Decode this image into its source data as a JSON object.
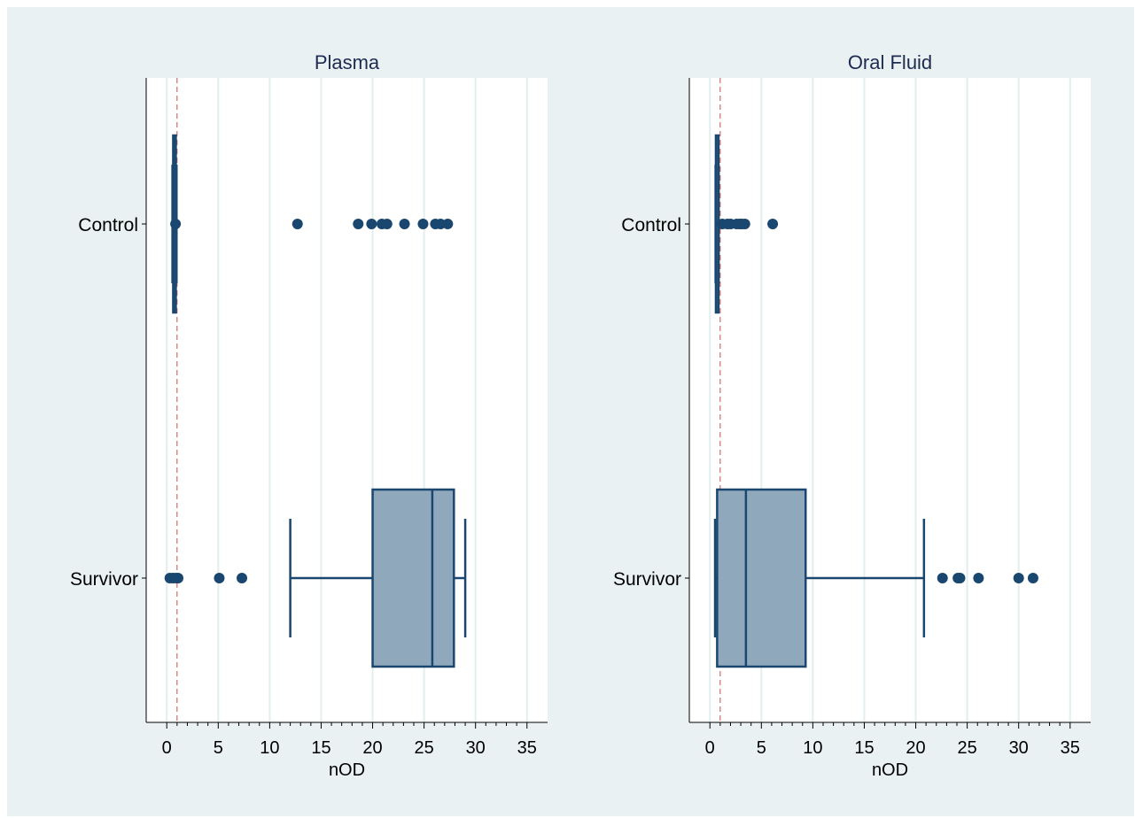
{
  "chart_data": [
    {
      "type": "boxplot",
      "title": "Plasma",
      "xlabel": "nOD",
      "ylabel": "",
      "xlim": [
        -2,
        37
      ],
      "xticks": [
        0,
        5,
        10,
        15,
        20,
        25,
        30,
        35
      ],
      "xtick_labels": [
        "0",
        "5",
        "10",
        "15",
        "20",
        "25",
        "30",
        "35"
      ],
      "grid": "vertical",
      "reference_line": {
        "x": 1.0,
        "style": "dashed",
        "color": "#c0504d"
      },
      "categories": [
        "Control",
        "Survivor"
      ],
      "boxes": [
        {
          "category": "Control",
          "whisker_low": 0.55,
          "q1": 0.62,
          "median": 0.68,
          "q3": 0.8,
          "whisker_high": 0.95,
          "outliers": [
            0.85,
            12.7,
            18.6,
            19.9,
            20.9,
            21.4,
            23.1,
            24.9,
            26.1,
            26.6,
            27.3
          ]
        },
        {
          "category": "Survivor",
          "whisker_low": 12.0,
          "q1": 20.0,
          "median": 25.8,
          "q3": 27.9,
          "whisker_high": 29.0,
          "outliers": [
            0.3,
            0.6,
            0.9,
            1.1,
            5.1,
            7.3
          ]
        }
      ]
    },
    {
      "type": "boxplot",
      "title": "Oral Fluid",
      "xlabel": "nOD",
      "ylabel": "",
      "xlim": [
        -2,
        37
      ],
      "xticks": [
        0,
        5,
        10,
        15,
        20,
        25,
        30,
        35
      ],
      "xtick_labels": [
        "0",
        "5",
        "10",
        "15",
        "20",
        "25",
        "30",
        "35"
      ],
      "grid": "vertical",
      "reference_line": {
        "x": 1.0,
        "style": "dashed",
        "color": "#c0504d"
      },
      "categories": [
        "Control",
        "Survivor"
      ],
      "boxes": [
        {
          "category": "Control",
          "whisker_low": 0.55,
          "q1": 0.58,
          "median": 0.62,
          "q3": 0.72,
          "whisker_high": 0.85,
          "outliers": [
            1.2,
            1.7,
            2.0,
            2.6,
            2.9,
            3.1,
            3.4,
            6.1
          ]
        },
        {
          "category": "Survivor",
          "whisker_low": 0.5,
          "q1": 0.7,
          "median": 3.5,
          "q3": 9.3,
          "whisker_high": 20.8,
          "outliers": [
            22.6,
            24.1,
            24.3,
            26.1,
            30.0,
            31.4
          ]
        }
      ]
    }
  ]
}
